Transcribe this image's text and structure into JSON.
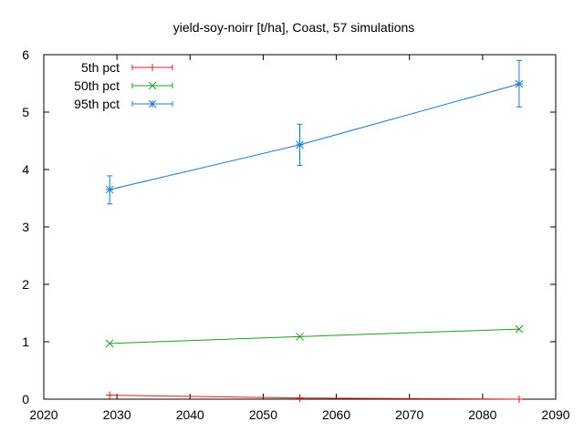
{
  "chart_data": {
    "type": "line",
    "title": "yield-soy-noirr [t/ha], Coast, 57 simulations",
    "xlabel": "",
    "ylabel": "",
    "xlim": [
      2020,
      2090
    ],
    "ylim": [
      0,
      6
    ],
    "xticks": [
      2020,
      2030,
      2040,
      2050,
      2060,
      2070,
      2080,
      2090
    ],
    "yticks": [
      0,
      1,
      2,
      3,
      4,
      5,
      6
    ],
    "grid": false,
    "legend_position": "top-left",
    "series": [
      {
        "name": "5th pct",
        "color": "#e41a1c",
        "marker": "plus",
        "points": [
          {
            "x": 2029,
            "y": 0.07,
            "err_low": 0.07,
            "err_high": 0.07
          },
          {
            "x": 2055,
            "y": 0.02,
            "err_low": 0.02,
            "err_high": 0.02
          },
          {
            "x": 2085,
            "y": 0.0,
            "err_low": 0.0,
            "err_high": 0.0
          }
        ]
      },
      {
        "name": "50th pct",
        "color": "#1aa01a",
        "marker": "cross",
        "points": [
          {
            "x": 2029,
            "y": 0.97,
            "err_low": 0.97,
            "err_high": 0.97
          },
          {
            "x": 2055,
            "y": 1.09,
            "err_low": 1.09,
            "err_high": 1.09
          },
          {
            "x": 2085,
            "y": 1.22,
            "err_low": 1.22,
            "err_high": 1.22
          }
        ]
      },
      {
        "name": "95th pct",
        "color": "#1f78d0",
        "marker": "star",
        "points": [
          {
            "x": 2029,
            "y": 3.65,
            "err_low": 3.4,
            "err_high": 3.89
          },
          {
            "x": 2055,
            "y": 4.43,
            "err_low": 4.07,
            "err_high": 4.79
          },
          {
            "x": 2085,
            "y": 5.49,
            "err_low": 5.09,
            "err_high": 5.9
          }
        ]
      }
    ]
  }
}
